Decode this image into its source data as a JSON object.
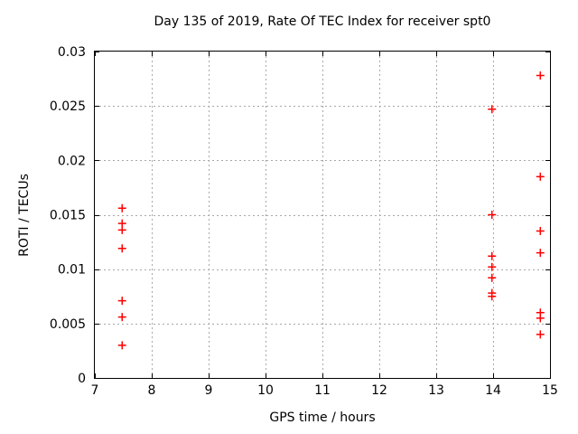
{
  "chart_data": {
    "type": "scatter",
    "title": "Day 135 of 2019, Rate Of TEC Index for receiver spt0",
    "xlabel": "GPS time / hours",
    "ylabel": "ROTI / TECUs",
    "xlim": [
      7,
      15
    ],
    "ylim": [
      0,
      0.03
    ],
    "xticks": [
      {
        "v": 7,
        "label": "7"
      },
      {
        "v": 8,
        "label": "8"
      },
      {
        "v": 9,
        "label": "9"
      },
      {
        "v": 10,
        "label": "10"
      },
      {
        "v": 11,
        "label": "11"
      },
      {
        "v": 12,
        "label": "12"
      },
      {
        "v": 13,
        "label": "13"
      },
      {
        "v": 14,
        "label": "14"
      },
      {
        "v": 15,
        "label": "15"
      }
    ],
    "yticks": [
      {
        "v": 0,
        "label": "0"
      },
      {
        "v": 0.005,
        "label": "0.005"
      },
      {
        "v": 0.01,
        "label": "0.01"
      },
      {
        "v": 0.015,
        "label": "0.015"
      },
      {
        "v": 0.02,
        "label": "0.02"
      },
      {
        "v": 0.025,
        "label": "0.025"
      },
      {
        "v": 0.03,
        "label": "0.03"
      }
    ],
    "grid": true,
    "legend": "none",
    "marker": {
      "shape": "plus",
      "size": 9
    },
    "series": [
      {
        "name": "ROTI",
        "points": [
          {
            "x": 7.48,
            "y": 0.0156
          },
          {
            "x": 7.48,
            "y": 0.0142
          },
          {
            "x": 7.48,
            "y": 0.0136
          },
          {
            "x": 7.48,
            "y": 0.0119
          },
          {
            "x": 7.48,
            "y": 0.0071
          },
          {
            "x": 7.48,
            "y": 0.0056
          },
          {
            "x": 7.48,
            "y": 0.003
          },
          {
            "x": 13.98,
            "y": 0.0247
          },
          {
            "x": 13.98,
            "y": 0.015
          },
          {
            "x": 13.98,
            "y": 0.0112
          },
          {
            "x": 13.98,
            "y": 0.0102
          },
          {
            "x": 13.98,
            "y": 0.0092
          },
          {
            "x": 13.98,
            "y": 0.0078
          },
          {
            "x": 13.98,
            "y": 0.0075
          },
          {
            "x": 14.83,
            "y": 0.0278
          },
          {
            "x": 14.83,
            "y": 0.0185
          },
          {
            "x": 14.83,
            "y": 0.0135
          },
          {
            "x": 14.83,
            "y": 0.0115
          },
          {
            "x": 14.83,
            "y": 0.006
          },
          {
            "x": 14.83,
            "y": 0.0055
          },
          {
            "x": 14.83,
            "y": 0.004
          }
        ]
      }
    ],
    "colors": {
      "marker": "#ff0000",
      "grid": "#a8a8a8",
      "axis": "#000000",
      "background": "#ffffff",
      "text": "#000000"
    }
  }
}
